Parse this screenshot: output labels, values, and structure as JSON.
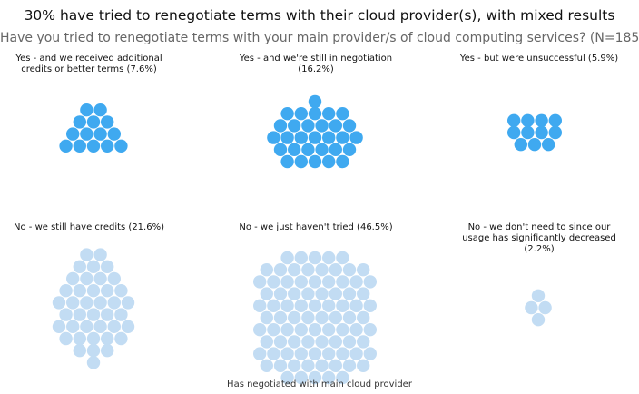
{
  "title": "30% have tried to renegotiate terms with their cloud provider(s), with mixed results",
  "subtitle": "Have you tried to renegotiate terms with your main provider/s of cloud computing services? (N=185)",
  "footnote": "Has negotiated with main cloud provider",
  "colors": {
    "negotiated": "#3fa9f0",
    "not_negotiated": "#c2dcf3"
  },
  "chart_data": {
    "type": "packed-bubble",
    "total_n": 185,
    "legend": "Has negotiated with main cloud provider",
    "groups": [
      {
        "label": "Yes - and we received additional credits or better terms (7.6%)",
        "percent": 7.6,
        "count": 14,
        "negotiated": true
      },
      {
        "label": "Yes - and we're still in negotiation (16.2%)",
        "percent": 16.2,
        "count": 30,
        "negotiated": true
      },
      {
        "label": "Yes - but were unsuccessful (5.9%)",
        "percent": 5.9,
        "count": 11,
        "negotiated": true
      },
      {
        "label": "No - we still have credits (21.6%)",
        "percent": 21.6,
        "count": 40,
        "negotiated": false
      },
      {
        "label": "No - we just haven't tried (46.5%)",
        "percent": 46.5,
        "count": 86,
        "negotiated": false
      },
      {
        "label": "No - we don't need to since our usage has significantly decreased (2.2%)",
        "percent": 2.2,
        "count": 4,
        "negotiated": false
      }
    ]
  }
}
